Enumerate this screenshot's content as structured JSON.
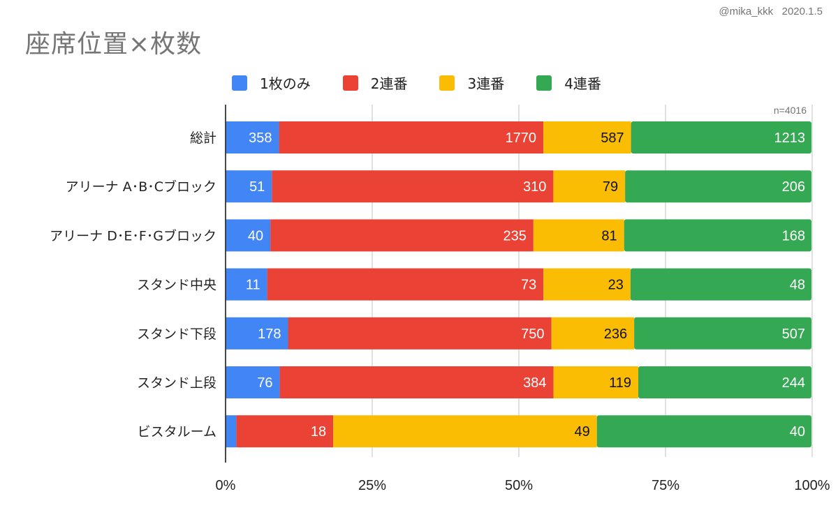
{
  "header": {
    "credit": "@mika_kkk   2020.1.5",
    "title": "座席位置×枚数"
  },
  "chart_data": {
    "type": "bar",
    "orientation": "horizontal",
    "stacked": "percent",
    "title": "座席位置×枚数",
    "annotation": "n=4016",
    "legend_position": "top",
    "grid": true,
    "xlim": [
      0,
      100
    ],
    "x_ticks": [
      "0%",
      "25%",
      "50%",
      "75%",
      "100%"
    ],
    "categories": [
      "総計",
      "アリーナ A･B･Cブロック",
      "アリーナ D･E･F･Gブロック",
      "スタンド中央",
      "スタンド下段",
      "スタンド上段",
      "ビスタルーム"
    ],
    "series": [
      {
        "name": "1枚のみ",
        "color": "#4285f4",
        "values": [
          358,
          51,
          40,
          11,
          178,
          76,
          2
        ]
      },
      {
        "name": "2連番",
        "color": "#ea4335",
        "values": [
          1770,
          310,
          235,
          73,
          750,
          384,
          18
        ]
      },
      {
        "name": "3連番",
        "color": "#fbbc04",
        "values": [
          587,
          79,
          81,
          23,
          236,
          119,
          49
        ]
      },
      {
        "name": "4連番",
        "color": "#34a853",
        "values": [
          1213,
          206,
          168,
          48,
          507,
          244,
          40
        ]
      }
    ]
  }
}
